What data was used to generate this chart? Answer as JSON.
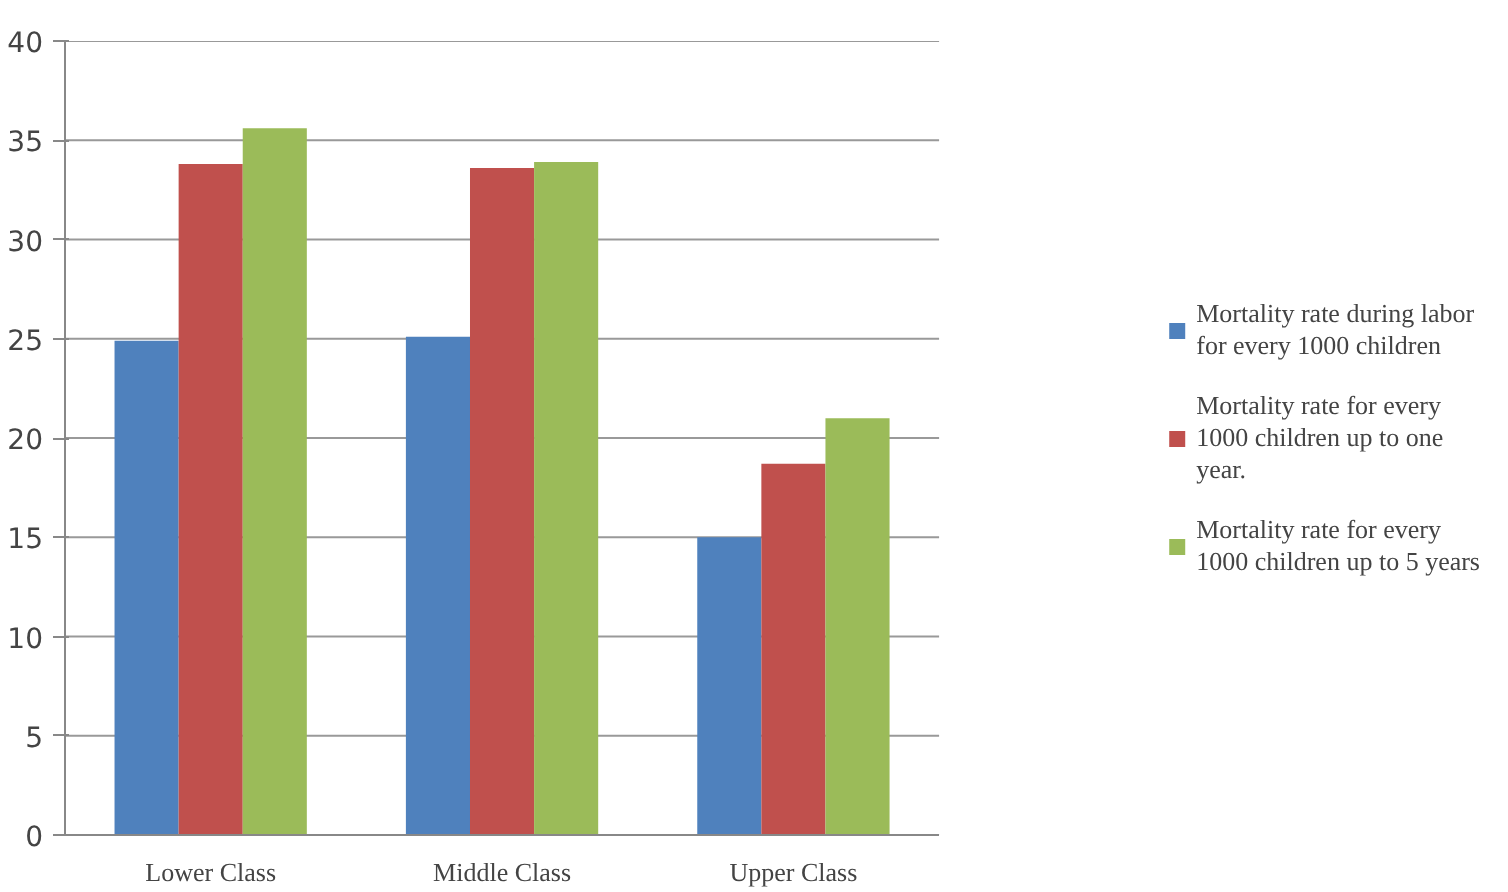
{
  "chart_data": {
    "type": "bar",
    "categories": [
      "Lower Class",
      "Middle Class",
      "Upper Class"
    ],
    "series": [
      {
        "name": "Mortality rate during labor for every 1000 children",
        "color": "#4f81bd",
        "values": [
          24.9,
          25.1,
          15.0
        ]
      },
      {
        "name": "Mortality rate for every 1000 children up to one year.",
        "color": "#c0504d",
        "values": [
          33.8,
          33.6,
          18.7
        ]
      },
      {
        "name": "Mortality rate for every 1000 children up to 5 years",
        "color": "#9bbb59",
        "values": [
          35.6,
          33.9,
          21.0
        ]
      }
    ],
    "ylim": [
      0,
      40
    ],
    "yticks": [
      0,
      5,
      10,
      15,
      20,
      25,
      30,
      35,
      40
    ],
    "grid": "y",
    "legend": "right"
  }
}
